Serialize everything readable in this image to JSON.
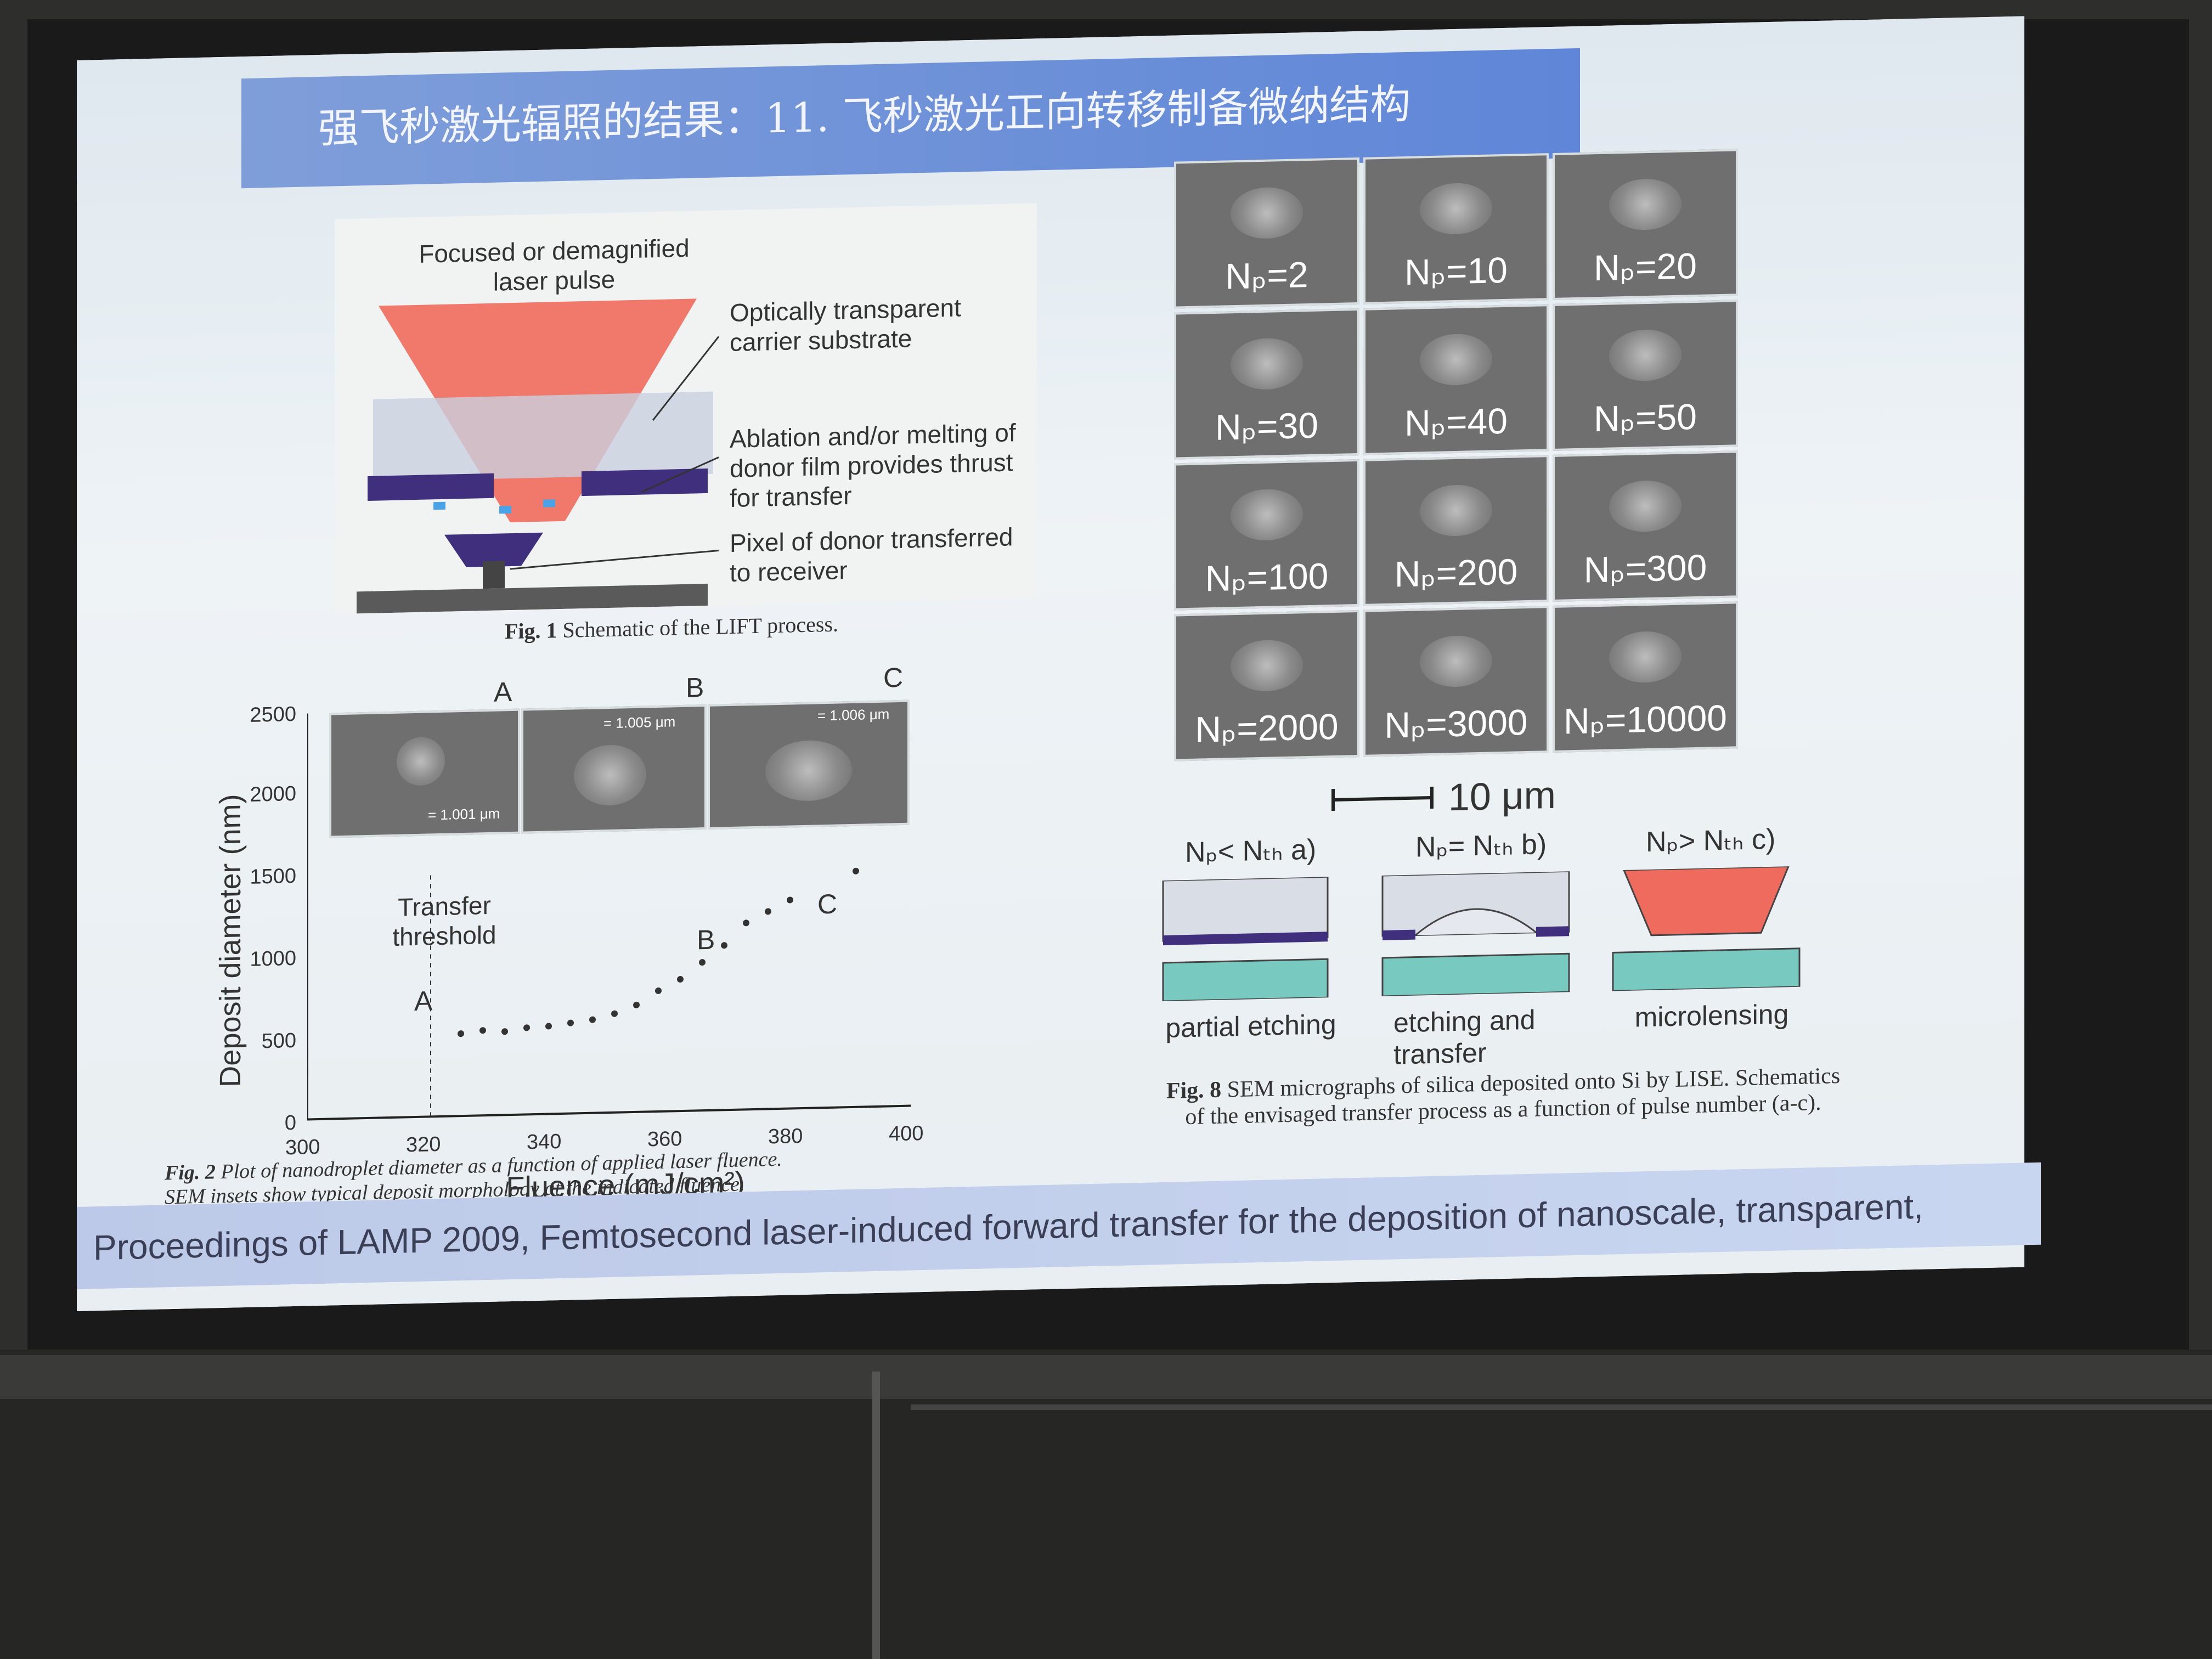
{
  "slide": {
    "title": "强飞秒激光辐照的结果：11. 飞秒激光正向转移制备微纳结构",
    "footer": "Proceedings of LAMP 2009, Femtosecond laser-induced forward transfer for the deposition of nanoscale, transparent,"
  },
  "fig1": {
    "label_laser": "Focused or demagnified laser pulse",
    "label_substrate": "Optically transparent carrier substrate",
    "label_ablation": "Ablation and/or melting of donor film provides thrust for transfer",
    "label_pixel": "Pixel of donor transferred to receiver",
    "caption_bold": "Fig. 1",
    "caption": "Schematic of the LIFT process."
  },
  "fig2": {
    "ylabel": "Deposit diameter (nm)",
    "xlabel": "Fluence (mJ/cm²)",
    "yticks": [
      "2500",
      "2000",
      "1500",
      "1000",
      "500",
      "0"
    ],
    "xticks": [
      "300",
      "320",
      "340",
      "360",
      "380",
      "400"
    ],
    "inset_labels": [
      "A",
      "B",
      "C"
    ],
    "inset_scales": [
      "= 1.001 μm",
      "= 1.005 μm",
      "= 1.006 μm"
    ],
    "annotation": "Transfer threshold",
    "point_labels": [
      "A",
      "B",
      "C"
    ],
    "caption_bold": "Fig. 2",
    "caption_line1": "Plot of nanodroplet diameter as a function of applied laser fluence.",
    "caption_line2": "SEM insets show typical deposit morphology at the indicated fluence."
  },
  "fig8": {
    "tiles": [
      "Nₚ=2",
      "Nₚ=10",
      "Nₚ=20",
      "Nₚ=30",
      "Nₚ=40",
      "Nₚ=50",
      "Nₚ=100",
      "Nₚ=200",
      "Nₚ=300",
      "Nₚ=2000",
      "Nₚ=3000",
      "Nₚ=10000"
    ],
    "scale": "10 μm",
    "schem_titles": [
      "Nₚ< Nₜₕ a)",
      "Nₚ= Nₜₕ b)",
      "Nₚ> Nₜₕ c)"
    ],
    "schem_labels": [
      "partial etching",
      "etching and transfer",
      "microlensing"
    ],
    "caption_bold": "Fig. 8",
    "caption_line1": "SEM micrographs of silica deposited onto Si by LISE. Schematics",
    "caption_line2": "of the envisaged transfer process as a function of pulse number (a-c)."
  }
}
